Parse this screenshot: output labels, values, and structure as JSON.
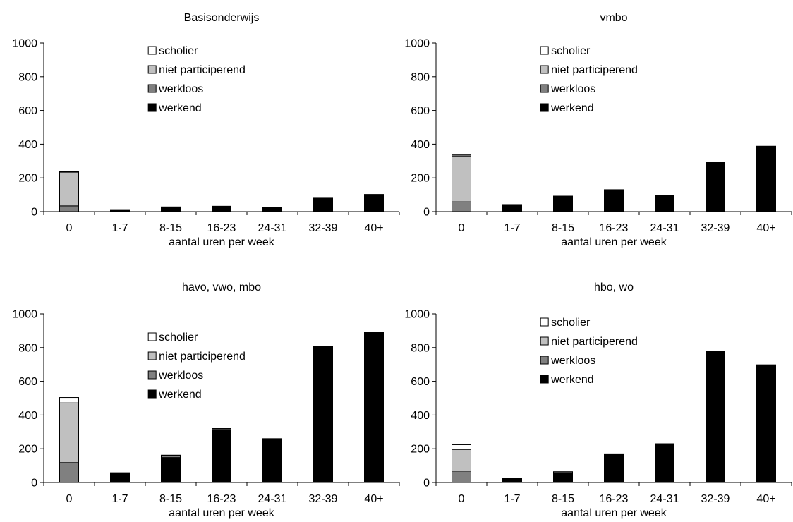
{
  "colors": {
    "scholier": "#ffffff",
    "niet participerend": "#c0c0c0",
    "werkloos": "#808080",
    "werkend": "#000000",
    "axis": "#000000"
  },
  "chart_data": [
    {
      "type": "bar",
      "stacked": true,
      "title": "Basisonderwijs",
      "xlabel": "aantal uren per week",
      "ylabel": "",
      "ylim": [
        0,
        1000
      ],
      "yticks": [
        0,
        200,
        400,
        600,
        800,
        1000
      ],
      "categories": [
        "0",
        "1-7",
        "8-15",
        "16-23",
        "24-31",
        "32-39",
        "40+"
      ],
      "legend_position": "top-center",
      "legend": [
        "scholier",
        "niet participerend",
        "werkloos",
        "werkend"
      ],
      "series": [
        {
          "name": "werkend",
          "values": [
            0,
            12,
            28,
            32,
            25,
            84,
            102
          ]
        },
        {
          "name": "werkloos",
          "values": [
            34,
            0,
            0,
            0,
            0,
            0,
            0
          ]
        },
        {
          "name": "niet participerend",
          "values": [
            200,
            0,
            0,
            0,
            0,
            0,
            0
          ]
        },
        {
          "name": "scholier",
          "values": [
            3,
            0,
            0,
            0,
            0,
            0,
            0
          ]
        }
      ]
    },
    {
      "type": "bar",
      "stacked": true,
      "title": "vmbo",
      "xlabel": "aantal uren per week",
      "ylabel": "",
      "ylim": [
        0,
        1000
      ],
      "yticks": [
        0,
        200,
        400,
        600,
        800,
        1000
      ],
      "categories": [
        "0",
        "1-7",
        "8-15",
        "16-23",
        "24-31",
        "32-39",
        "40+"
      ],
      "legend_position": "top-center",
      "legend": [
        "scholier",
        "niet participerend",
        "werkloos",
        "werkend"
      ],
      "series": [
        {
          "name": "werkend",
          "values": [
            0,
            42,
            92,
            130,
            95,
            295,
            388
          ]
        },
        {
          "name": "werkloos",
          "values": [
            58,
            0,
            0,
            0,
            0,
            0,
            0
          ]
        },
        {
          "name": "niet participerend",
          "values": [
            272,
            0,
            0,
            0,
            0,
            0,
            0
          ]
        },
        {
          "name": "scholier",
          "values": [
            6,
            0,
            0,
            0,
            0,
            0,
            0
          ]
        }
      ]
    },
    {
      "type": "bar",
      "stacked": true,
      "title": "havo, vwo, mbo",
      "xlabel": "aantal uren per week",
      "ylabel": "",
      "ylim": [
        0,
        1000
      ],
      "yticks": [
        0,
        200,
        400,
        600,
        800,
        1000
      ],
      "categories": [
        "0",
        "1-7",
        "8-15",
        "16-23",
        "24-31",
        "32-39",
        "40+"
      ],
      "legend_position": "top-center",
      "legend": [
        "scholier",
        "niet participerend",
        "werkloos",
        "werkend"
      ],
      "series": [
        {
          "name": "werkend",
          "values": [
            0,
            55,
            148,
            312,
            260,
            808,
            893
          ]
        },
        {
          "name": "werkloos",
          "values": [
            118,
            3,
            10,
            6,
            0,
            0,
            0
          ]
        },
        {
          "name": "niet participerend",
          "values": [
            354,
            0,
            4,
            2,
            0,
            0,
            0
          ]
        },
        {
          "name": "scholier",
          "values": [
            32,
            0,
            0,
            0,
            0,
            0,
            0
          ]
        }
      ]
    },
    {
      "type": "bar",
      "stacked": true,
      "title": "hbo, wo",
      "xlabel": "aantal uren per week",
      "ylabel": "",
      "ylim": [
        0,
        1000
      ],
      "yticks": [
        0,
        200,
        400,
        600,
        800,
        1000
      ],
      "categories": [
        "0",
        "1-7",
        "8-15",
        "16-23",
        "24-31",
        "32-39",
        "40+"
      ],
      "legend_position": "top-center",
      "legend": [
        "scholier",
        "niet participerend",
        "werkloos",
        "werkend"
      ],
      "series": [
        {
          "name": "werkend",
          "values": [
            0,
            25,
            58,
            170,
            230,
            778,
            692
          ]
        },
        {
          "name": "werkloos",
          "values": [
            68,
            0,
            6,
            0,
            0,
            0,
            4
          ]
        },
        {
          "name": "niet participerend",
          "values": [
            128,
            0,
            0,
            0,
            0,
            0,
            2
          ]
        },
        {
          "name": "scholier",
          "values": [
            28,
            0,
            0,
            0,
            0,
            0,
            0
          ]
        }
      ]
    }
  ]
}
